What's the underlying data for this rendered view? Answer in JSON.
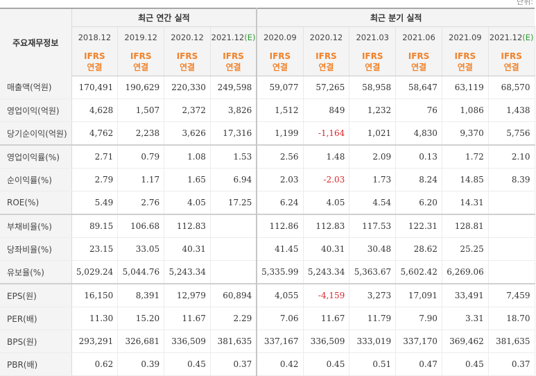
{
  "corner_note": "단위:",
  "header": {
    "row_label": "주요재무정보",
    "annual_group": "최근 연간 실적",
    "quarter_group": "최근 분기 실적",
    "annual_periods": [
      "2018.12",
      "2019.12",
      "2020.12",
      "2021.12"
    ],
    "annual_estimate_suffix": "(E)",
    "quarter_periods": [
      "2020.09",
      "2020.12",
      "2021.03",
      "2021.06",
      "2021.09",
      "2021.12"
    ],
    "quarter_estimate_suffix": "(E)",
    "ifrs_label": "IFRS",
    "basis_label": "연결"
  },
  "rows": [
    {
      "label": "매출액(억원)",
      "values": [
        "170,491",
        "190,629",
        "220,330",
        "249,598",
        "59,077",
        "57,265",
        "58,958",
        "58,647",
        "63,119",
        "68,570"
      ]
    },
    {
      "label": "영업이익(억원)",
      "values": [
        "4,628",
        "1,507",
        "2,372",
        "3,826",
        "1,512",
        "849",
        "1,232",
        "76",
        "1,086",
        "1,438"
      ]
    },
    {
      "label": "당기순이익(억원)",
      "values": [
        "4,762",
        "2,238",
        "3,626",
        "17,316",
        "1,199",
        "-1,164",
        "1,021",
        "4,830",
        "9,370",
        "5,756"
      ]
    },
    {
      "label": "영업이익률(%)",
      "values": [
        "2.71",
        "0.79",
        "1.08",
        "1.53",
        "2.56",
        "1.48",
        "2.09",
        "0.13",
        "1.72",
        "2.10"
      ]
    },
    {
      "label": "순이익률(%)",
      "values": [
        "2.79",
        "1.17",
        "1.65",
        "6.94",
        "2.03",
        "-2.03",
        "1.73",
        "8.24",
        "14.85",
        "8.39"
      ]
    },
    {
      "label": "ROE(%)",
      "values": [
        "5.49",
        "2.76",
        "4.05",
        "17.25",
        "6.24",
        "4.05",
        "4.54",
        "6.20",
        "14.31",
        ""
      ]
    },
    {
      "label": "부채비율(%)",
      "values": [
        "89.15",
        "106.68",
        "112.83",
        "",
        "112.86",
        "112.83",
        "117.53",
        "122.31",
        "128.81",
        ""
      ]
    },
    {
      "label": "당좌비율(%)",
      "values": [
        "23.15",
        "33.05",
        "40.31",
        "",
        "41.45",
        "40.31",
        "30.48",
        "28.62",
        "25.25",
        ""
      ]
    },
    {
      "label": "유보율(%)",
      "values": [
        "5,029.24",
        "5,044.76",
        "5,243.34",
        "",
        "5,335.99",
        "5,243.34",
        "5,363.67",
        "5,602.42",
        "6,269.06",
        ""
      ]
    },
    {
      "label": "EPS(원)",
      "values": [
        "16,150",
        "8,391",
        "12,979",
        "60,894",
        "4,055",
        "-4,159",
        "3,273",
        "17,091",
        "33,491",
        "7,459"
      ]
    },
    {
      "label": "PER(배)",
      "values": [
        "11.30",
        "15.20",
        "11.67",
        "2.29",
        "7.06",
        "11.67",
        "11.79",
        "7.90",
        "3.31",
        "18.70"
      ]
    },
    {
      "label": "BPS(원)",
      "values": [
        "293,291",
        "326,681",
        "336,509",
        "381,635",
        "337,167",
        "336,509",
        "333,019",
        "337,170",
        "369,462",
        "381,635"
      ]
    },
    {
      "label": "PBR(배)",
      "values": [
        "0.62",
        "0.39",
        "0.45",
        "0.37",
        "0.42",
        "0.45",
        "0.51",
        "0.47",
        "0.45",
        "0.37"
      ]
    }
  ],
  "colors": {
    "negative": "#d9262a",
    "ifrs": "#f0822a",
    "estimate": "#2f9a2f"
  }
}
